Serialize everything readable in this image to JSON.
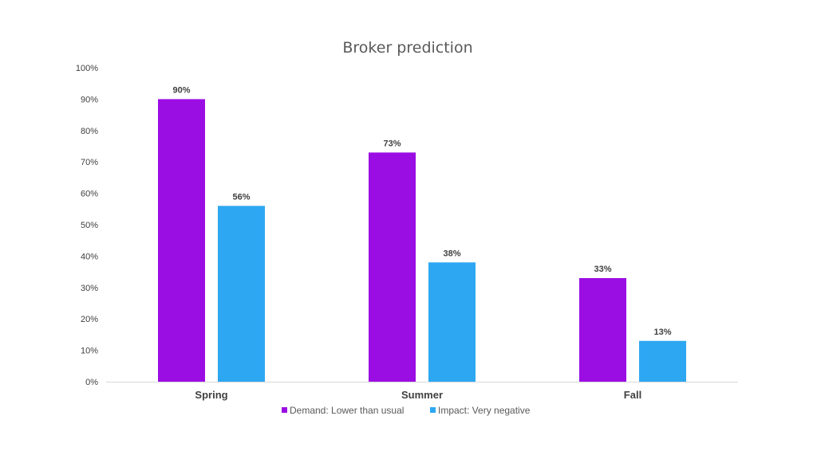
{
  "chart_data": {
    "type": "bar",
    "title": "Broker prediction",
    "xlabel": "",
    "ylabel": "",
    "categories": [
      "Spring",
      "Summer",
      "Fall"
    ],
    "series": [
      {
        "name": "Demand: Lower than usual",
        "values": [
          90,
          73,
          33
        ],
        "color": "#9b0ee3"
      },
      {
        "name": "Impact: Very negative",
        "values": [
          56,
          38,
          13
        ],
        "color": "#2ea7f2"
      }
    ],
    "data_labels": [
      [
        "90%",
        "73%",
        "33%"
      ],
      [
        "56%",
        "38%",
        "13%"
      ]
    ],
    "ylim": [
      0,
      100
    ],
    "yticks": [
      "0%",
      "10%",
      "20%",
      "30%",
      "40%",
      "50%",
      "60%",
      "70%",
      "80%",
      "90%",
      "100%"
    ],
    "grid": false,
    "legend_position": "bottom"
  }
}
